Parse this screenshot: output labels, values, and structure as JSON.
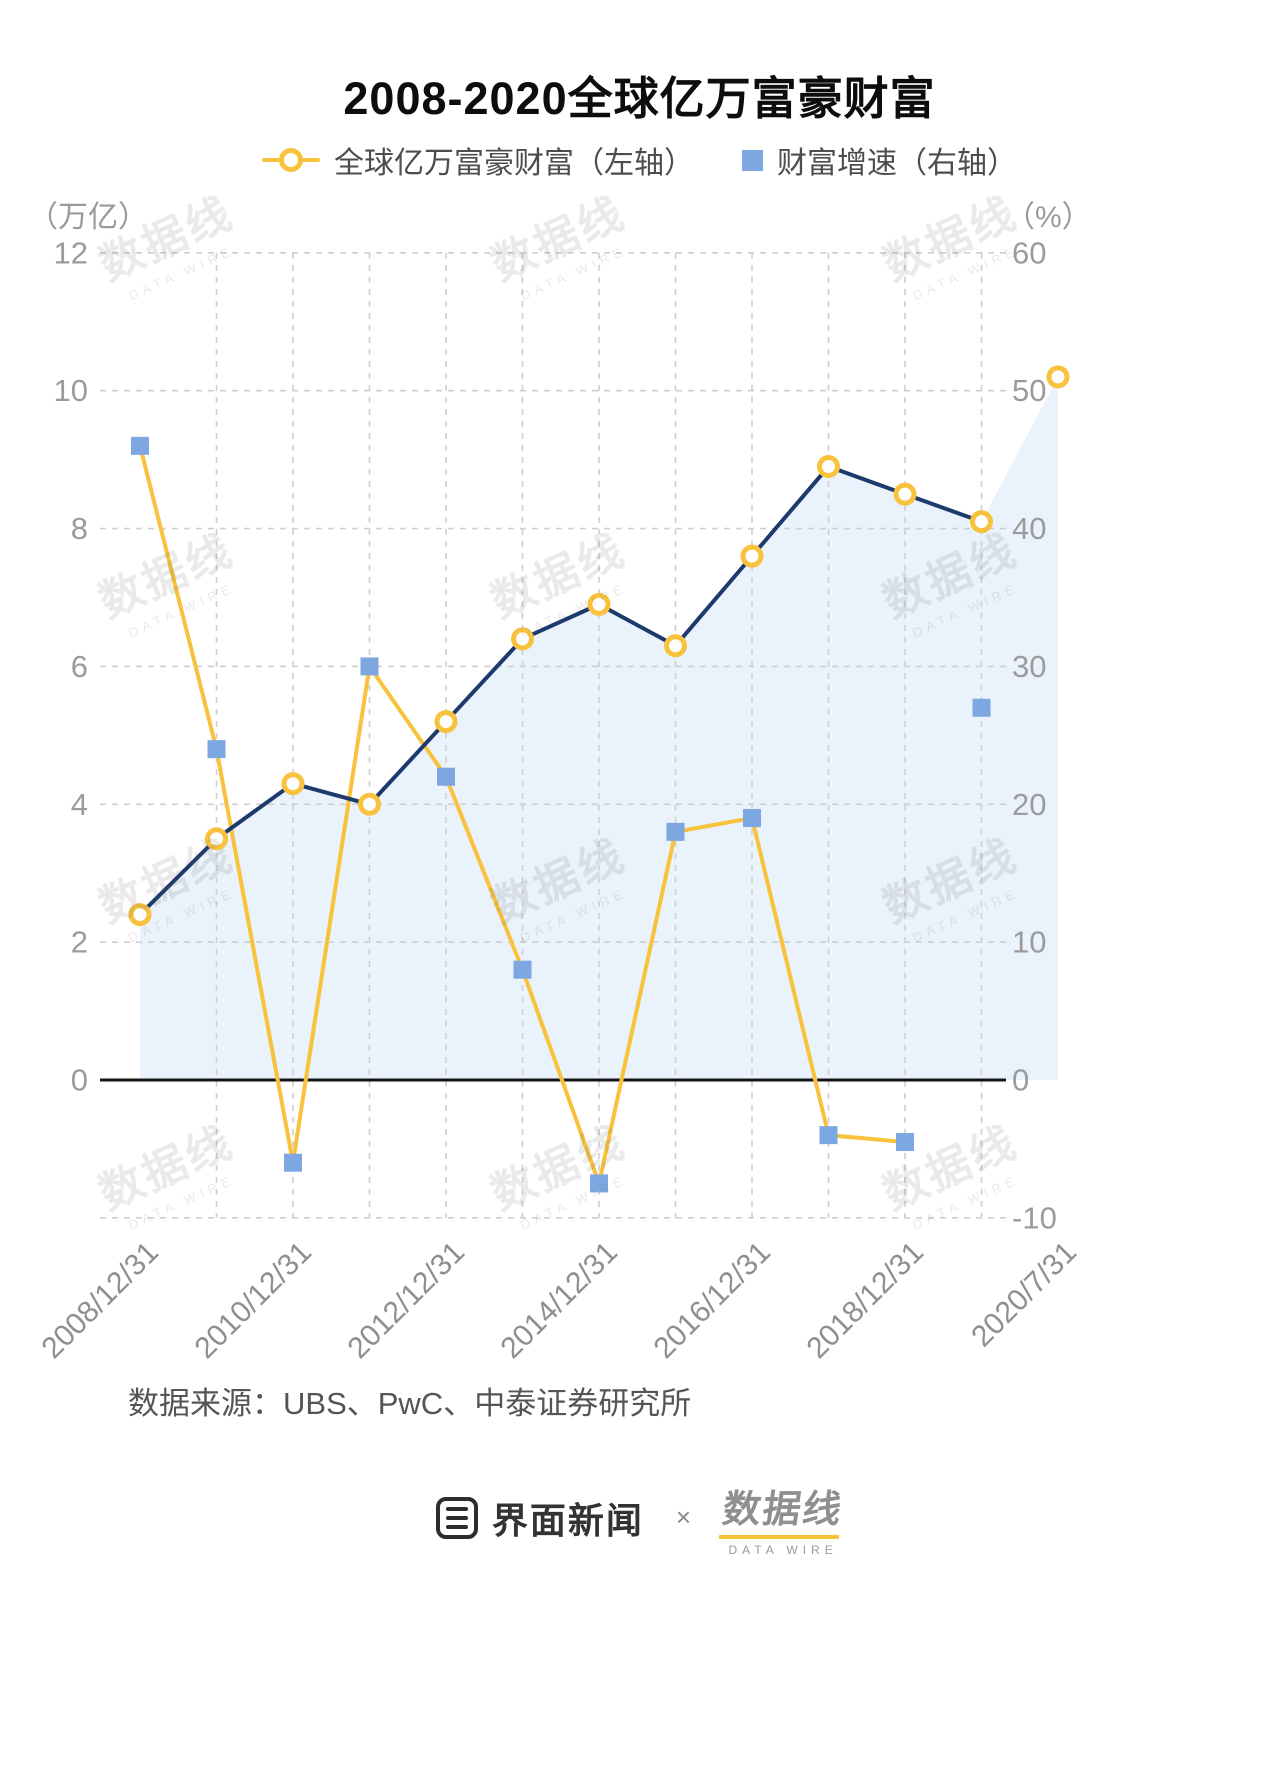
{
  "title": "2008-2020全球亿万富豪财富",
  "legend": [
    {
      "label": "全球亿万富豪财富（左轴）",
      "marker": "line-circle",
      "color": "#F8C23D"
    },
    {
      "label": "财富增速（右轴）",
      "marker": "square",
      "color": "#7DA7E0"
    }
  ],
  "source": "数据来源：UBS、PwC、中泰证券研究所",
  "watermark": {
    "text": "数据线",
    "subtext": "DATA WIRE"
  },
  "footer": {
    "brand1": "界面新闻",
    "separator": "×",
    "brand2": "数据线",
    "brand2_sub": "DATA WIRE"
  },
  "chart_data": {
    "type": "line",
    "title": "2008-2020全球亿万富豪财富",
    "area_fill": "#DCEAF9",
    "x": [
      "2008/12/31",
      "2009/12/31",
      "2010/12/31",
      "2011/12/31",
      "2012/12/31",
      "2013/12/31",
      "2014/12/31",
      "2015/12/31",
      "2016/12/31",
      "2017/12/31",
      "2018/12/31",
      "2019/12/31",
      "2020/7/31"
    ],
    "x_tick_labels": {
      "indices": [
        0,
        2,
        4,
        6,
        8,
        10,
        12
      ],
      "labels": [
        "2008/12/31",
        "2010/12/31",
        "2012/12/31",
        "2014/12/31",
        "2016/12/31",
        "2018/12/31",
        "2020/7/31"
      ]
    },
    "series": [
      {
        "name": "全球亿万富豪财富",
        "axis": "left",
        "unit": "万亿",
        "color": "#1D3A6D",
        "marker": "circle",
        "marker_color": "#F8C23D",
        "area": true,
        "line_through": 12,
        "values": [
          2.4,
          3.5,
          4.3,
          4.0,
          5.2,
          6.4,
          6.9,
          6.3,
          7.6,
          8.9,
          8.5,
          8.1,
          10.2
        ]
      },
      {
        "name": "财富增速",
        "axis": "right",
        "unit": "%",
        "color": "#F8C23D",
        "marker": "square",
        "marker_color": "#7DA7E0",
        "line_through": 11,
        "values": [
          46,
          24,
          -6,
          30,
          22,
          8,
          -7.5,
          18,
          19,
          -4,
          -4.5,
          27,
          null
        ]
      }
    ],
    "left_axis": {
      "unit": "（万亿）",
      "ticks": [
        0,
        2,
        4,
        6,
        8,
        10,
        12
      ],
      "min": -2,
      "max": 12
    },
    "right_axis": {
      "unit": "（%）",
      "ticks": [
        -10,
        0,
        10,
        20,
        30,
        40,
        50,
        60
      ],
      "min": -10,
      "max": 60
    },
    "grid": true,
    "legend_position": "top"
  }
}
